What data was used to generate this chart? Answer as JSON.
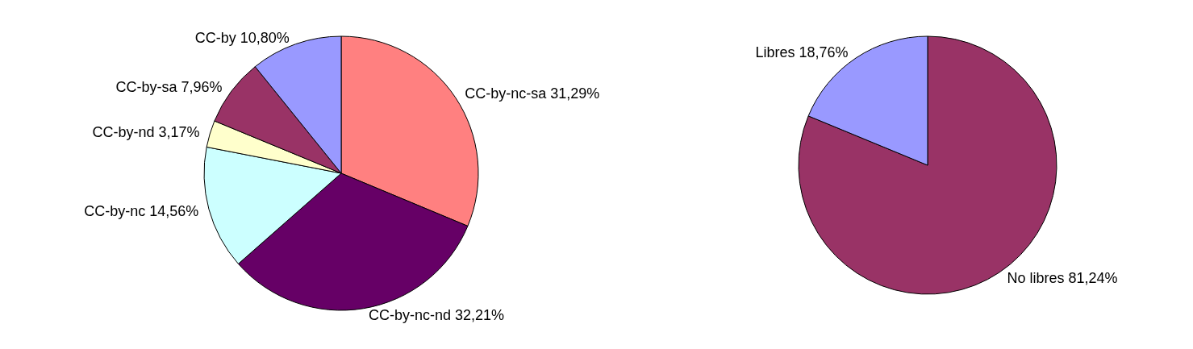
{
  "chart_data": [
    {
      "type": "pie",
      "categories": [
        "CC-by-nc-sa",
        "CC-by-nc-nd",
        "CC-by-nc",
        "CC-by-nd",
        "CC-by-sa",
        "CC-by"
      ],
      "values": [
        31.29,
        32.21,
        14.56,
        3.17,
        7.96,
        10.8
      ],
      "value_labels": [
        "31,29%",
        "32,21%",
        "14,56%",
        "3,17%",
        "7,96%",
        "10,80%"
      ],
      "colors": [
        "#ff8080",
        "#660066",
        "#ccffff",
        "#ffffcc",
        "#993366",
        "#9999ff"
      ],
      "legend": false
    },
    {
      "type": "pie",
      "categories": [
        "No libres",
        "Libres"
      ],
      "values": [
        81.24,
        18.76
      ],
      "value_labels": [
        "81,24%",
        "18,76%"
      ],
      "colors": [
        "#993366",
        "#9999ff"
      ],
      "legend": false
    }
  ]
}
